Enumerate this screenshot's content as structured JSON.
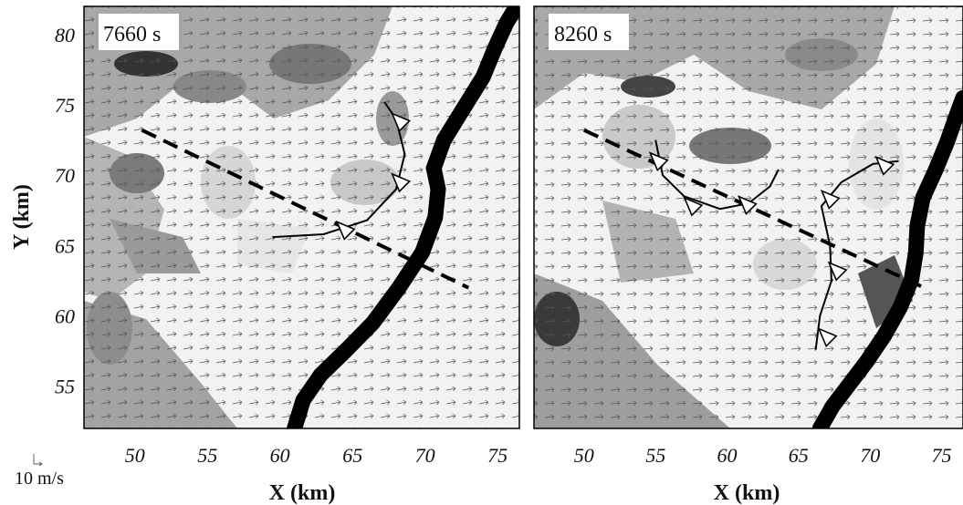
{
  "chart_data": [
    {
      "type": "other",
      "panel_label": "7660 s",
      "xlabel": "",
      "ylabel": "Y (km)",
      "xlim": [
        46.5,
        76.5
      ],
      "ylim": [
        52,
        82
      ],
      "xticks": [
        "50",
        "55",
        "60",
        "65",
        "70",
        "75"
      ],
      "yticks": [
        "55",
        "60",
        "65",
        "70",
        "75",
        "80"
      ],
      "grid": false,
      "annotations": {
        "dashed_line": [
          [
            50.5,
            73.2
          ],
          [
            73.0,
            62.0
          ]
        ],
        "front": [
          [
            59.5,
            65.6
          ],
          [
            63.0,
            65.8
          ],
          [
            66.0,
            66.8
          ],
          [
            68.0,
            69.0
          ],
          [
            68.6,
            71.5
          ],
          [
            68.0,
            74.0
          ],
          [
            67.2,
            75.2
          ]
        ],
        "front_triangles": [
          [
            64.5,
            66.1
          ],
          [
            68.3,
            69.5
          ],
          [
            68.3,
            73.8
          ]
        ],
        "thick_boundary": [
          [
            61.0,
            52.0
          ],
          [
            61.6,
            54.0
          ],
          [
            62.8,
            55.8
          ],
          [
            64.5,
            57.5
          ],
          [
            66.4,
            59.5
          ],
          [
            68.2,
            62.0
          ],
          [
            69.8,
            64.5
          ],
          [
            70.7,
            67.0
          ],
          [
            70.9,
            69.0
          ],
          [
            70.6,
            70.5
          ],
          [
            71.3,
            72.5
          ],
          [
            72.8,
            75.0
          ],
          [
            74.0,
            77.0
          ],
          [
            74.8,
            79.0
          ],
          [
            75.6,
            80.8
          ],
          [
            76.3,
            82.0
          ]
        ]
      }
    },
    {
      "type": "other",
      "panel_label": "8260 s",
      "xlabel": "X (km)",
      "ylabel": "",
      "xlim": [
        46.5,
        76.5
      ],
      "ylim": [
        52,
        82
      ],
      "xticks": [
        "50",
        "55",
        "60",
        "65",
        "70",
        "75"
      ],
      "yticks": [],
      "grid": false,
      "annotations": {
        "dashed_line": [
          [
            50.0,
            73.2
          ],
          [
            73.8,
            62.0
          ]
        ],
        "front1": [
          [
            55.0,
            72.5
          ],
          [
            55.5,
            70.0
          ],
          [
            57.0,
            68.5
          ],
          [
            59.5,
            67.6
          ],
          [
            61.5,
            68.0
          ],
          [
            63.0,
            69.2
          ],
          [
            63.6,
            70.4
          ]
        ],
        "front1_triangles": [
          [
            55.2,
            71.0
          ],
          [
            57.6,
            67.8
          ],
          [
            61.4,
            67.9
          ]
        ],
        "front2": [
          [
            66.2,
            57.6
          ],
          [
            66.5,
            60.0
          ],
          [
            67.3,
            62.5
          ],
          [
            67.2,
            65.0
          ],
          [
            66.6,
            67.8
          ],
          [
            68.0,
            69.5
          ],
          [
            70.2,
            70.8
          ],
          [
            72.0,
            71.0
          ]
        ],
        "front2_triangles": [
          [
            67.2,
            68.3
          ],
          [
            71.0,
            70.7
          ],
          [
            67.7,
            63.2
          ],
          [
            67.0,
            58.5
          ]
        ],
        "thick_boundary": [
          [
            66.5,
            52.0
          ],
          [
            67.4,
            53.6
          ],
          [
            68.6,
            55.2
          ],
          [
            69.8,
            56.8
          ],
          [
            71.0,
            58.6
          ],
          [
            72.1,
            60.6
          ],
          [
            72.9,
            62.6
          ],
          [
            73.2,
            64.5
          ],
          [
            73.3,
            66.4
          ],
          [
            73.7,
            68.4
          ],
          [
            74.6,
            70.4
          ],
          [
            75.4,
            72.4
          ],
          [
            76.1,
            74.4
          ],
          [
            76.5,
            75.5
          ]
        ]
      }
    }
  ],
  "reference_vector_label": "10 m/s"
}
